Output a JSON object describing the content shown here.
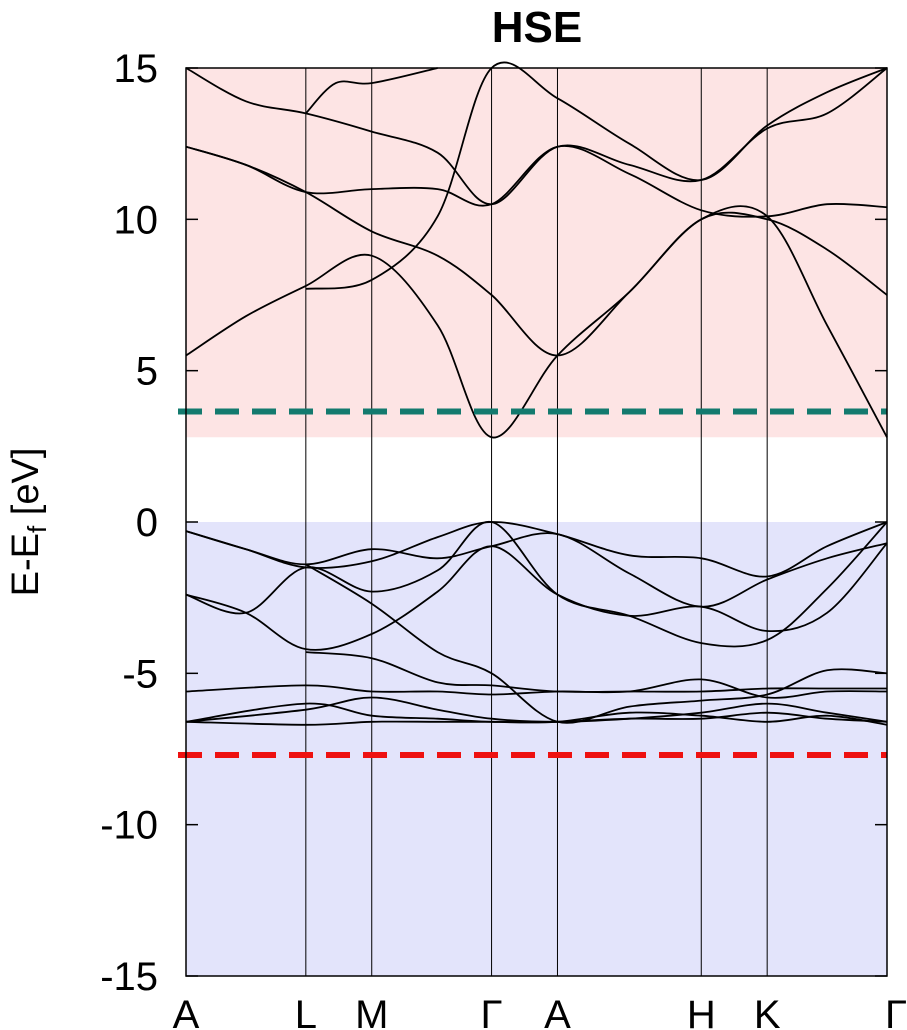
{
  "chart_data": {
    "type": "line",
    "title": "HSE",
    "ylabel": {
      "main": "E-E",
      "sub": "f",
      "unit": " [eV]"
    },
    "ylim": [
      -15,
      15
    ],
    "yticks": [
      15,
      10,
      5,
      0,
      -5,
      -10,
      -15
    ],
    "kpath": [
      {
        "label": "A",
        "x": 0.0
      },
      {
        "label": "L",
        "x": 1.0
      },
      {
        "label": "M",
        "x": 1.55
      },
      {
        "label": "Γ",
        "x": 2.55
      },
      {
        "label": "A",
        "x": 3.1
      },
      {
        "label": "H",
        "x": 4.3
      },
      {
        "label": "K",
        "x": 4.85
      },
      {
        "label": "Γ",
        "x": 5.85
      }
    ],
    "regions": [
      {
        "name": "conduction",
        "from": 2.8,
        "to": 15,
        "color": "#fde4e4"
      },
      {
        "name": "valence",
        "from": -15,
        "to": 0,
        "color": "#e3e4fb"
      }
    ],
    "reference_lines": [
      {
        "name": "cbm-reference",
        "y": 3.65,
        "color": "#137a6e"
      },
      {
        "name": "vbm-reference",
        "y": -7.7,
        "color": "#ee1111"
      }
    ],
    "bands": [
      [
        [
          0,
          5.5
        ],
        [
          0.5,
          6.8
        ],
        [
          1,
          7.8
        ],
        [
          1.55,
          8.8
        ],
        [
          2.1,
          6.5
        ],
        [
          2.55,
          2.8
        ],
        [
          3.1,
          5.5
        ],
        [
          3.7,
          7.6
        ],
        [
          4.3,
          10.0
        ],
        [
          4.85,
          10.1
        ],
        [
          5.35,
          6.5
        ],
        [
          5.85,
          2.8
        ]
      ],
      [
        [
          0,
          12.4
        ],
        [
          0.5,
          11.8
        ],
        [
          1,
          10.9
        ],
        [
          1.55,
          9.6
        ],
        [
          2.1,
          8.8
        ],
        [
          2.55,
          7.5
        ],
        [
          3.1,
          5.5
        ],
        [
          3.7,
          7.6
        ],
        [
          4.3,
          10.0
        ],
        [
          4.85,
          10.0
        ],
        [
          5.35,
          9.0
        ],
        [
          5.85,
          7.5
        ]
      ],
      [
        [
          0,
          12.4
        ],
        [
          0.5,
          11.8
        ],
        [
          1,
          10.9
        ],
        [
          1.55,
          11.0
        ],
        [
          2.1,
          11.0
        ],
        [
          2.55,
          10.5
        ],
        [
          3.1,
          12.4
        ],
        [
          3.7,
          11.5
        ],
        [
          4.3,
          10.3
        ],
        [
          4.85,
          10.1
        ],
        [
          5.35,
          10.5
        ],
        [
          5.85,
          10.4
        ]
      ],
      [
        [
          0,
          15.0
        ],
        [
          0.5,
          13.9
        ],
        [
          1,
          13.5
        ],
        [
          1.55,
          12.9
        ],
        [
          2.1,
          12.2
        ],
        [
          2.55,
          10.5
        ],
        [
          3.1,
          12.4
        ],
        [
          3.7,
          11.8
        ],
        [
          4.3,
          11.3
        ],
        [
          4.85,
          13.0
        ],
        [
          5.35,
          13.5
        ],
        [
          5.85,
          15.0
        ]
      ],
      [
        [
          1,
          7.7
        ],
        [
          1.55,
          8.0
        ],
        [
          2.1,
          10.1
        ],
        [
          2.55,
          15.0
        ],
        [
          3.1,
          14.0
        ],
        [
          3.7,
          12.5
        ],
        [
          4.3,
          11.3
        ],
        [
          4.85,
          13.1
        ],
        [
          5.35,
          14.2
        ],
        [
          5.85,
          15.0
        ]
      ],
      [
        [
          1,
          13.5
        ],
        [
          1.25,
          14.5
        ],
        [
          1.55,
          14.5
        ],
        [
          2.1,
          15.0
        ]
      ],
      [
        [
          0,
          -0.3
        ],
        [
          0.5,
          -0.9
        ],
        [
          1,
          -1.5
        ],
        [
          1.55,
          -1.3
        ],
        [
          2.1,
          -0.5
        ],
        [
          2.55,
          0.0
        ],
        [
          3.1,
          -0.4
        ],
        [
          3.7,
          -1.1
        ],
        [
          4.3,
          -1.2
        ],
        [
          4.85,
          -1.8
        ],
        [
          5.35,
          -0.8
        ],
        [
          5.85,
          0.0
        ]
      ],
      [
        [
          0,
          -0.3
        ],
        [
          0.5,
          -0.9
        ],
        [
          1,
          -1.4
        ],
        [
          1.55,
          -0.9
        ],
        [
          2.1,
          -1.2
        ],
        [
          2.55,
          -0.8
        ],
        [
          3.1,
          -0.4
        ],
        [
          3.7,
          -1.7
        ],
        [
          4.3,
          -2.8
        ],
        [
          4.85,
          -1.9
        ],
        [
          5.35,
          -1.2
        ],
        [
          5.85,
          -0.7
        ]
      ],
      [
        [
          0,
          -2.4
        ],
        [
          0.5,
          -3.0
        ],
        [
          1,
          -1.5
        ],
        [
          1.55,
          -2.3
        ],
        [
          2.1,
          -1.6
        ],
        [
          2.55,
          0.0
        ],
        [
          3.1,
          -2.4
        ],
        [
          3.7,
          -3.1
        ],
        [
          4.3,
          -4.0
        ],
        [
          4.85,
          -3.9
        ],
        [
          5.35,
          -2.2
        ],
        [
          5.85,
          0.0
        ]
      ],
      [
        [
          0,
          -2.4
        ],
        [
          0.5,
          -3.0
        ],
        [
          1,
          -4.2
        ],
        [
          1.55,
          -3.7
        ],
        [
          2.1,
          -2.3
        ],
        [
          2.55,
          -0.8
        ],
        [
          3.1,
          -2.4
        ],
        [
          3.7,
          -3.1
        ],
        [
          4.3,
          -2.8
        ],
        [
          4.85,
          -3.6
        ],
        [
          5.35,
          -3.0
        ],
        [
          5.85,
          -0.7
        ]
      ],
      [
        [
          1,
          -1.4
        ],
        [
          1.55,
          -2.7
        ],
        [
          2.1,
          -4.3
        ],
        [
          2.55,
          -5.0
        ],
        [
          3.1,
          -6.6
        ],
        [
          3.7,
          -6.1
        ],
        [
          4.3,
          -5.9
        ],
        [
          4.85,
          -5.7
        ],
        [
          5.35,
          -4.9
        ],
        [
          5.85,
          -5.0
        ]
      ],
      [
        [
          1,
          -4.3
        ],
        [
          1.55,
          -4.5
        ],
        [
          2.1,
          -5.3
        ],
        [
          2.55,
          -5.4
        ],
        [
          3.1,
          -5.6
        ],
        [
          3.7,
          -5.6
        ],
        [
          4.3,
          -5.6
        ],
        [
          4.85,
          -5.5
        ],
        [
          5.35,
          -5.5
        ],
        [
          5.85,
          -5.5
        ]
      ],
      [
        [
          0,
          -5.6
        ],
        [
          1,
          -5.4
        ],
        [
          1.55,
          -5.6
        ],
        [
          2.1,
          -5.6
        ],
        [
          2.55,
          -5.7
        ],
        [
          3.1,
          -5.6
        ],
        [
          3.7,
          -5.6
        ],
        [
          4.3,
          -5.2
        ],
        [
          4.85,
          -5.8
        ],
        [
          5.35,
          -5.6
        ],
        [
          5.85,
          -5.6
        ]
      ],
      [
        [
          0,
          -6.6
        ],
        [
          1,
          -6.2
        ],
        [
          1.55,
          -5.8
        ],
        [
          2.1,
          -6.2
        ],
        [
          2.55,
          -6.5
        ],
        [
          3.1,
          -6.6
        ],
        [
          3.7,
          -6.5
        ],
        [
          4.3,
          -6.3
        ],
        [
          4.85,
          -6.0
        ],
        [
          5.35,
          -6.3
        ],
        [
          5.85,
          -6.6
        ]
      ],
      [
        [
          0,
          -6.6
        ],
        [
          1,
          -6.0
        ],
        [
          1.55,
          -6.4
        ],
        [
          2.1,
          -6.5
        ],
        [
          2.55,
          -6.6
        ],
        [
          3.1,
          -6.6
        ],
        [
          3.7,
          -6.3
        ],
        [
          4.3,
          -6.4
        ],
        [
          4.85,
          -6.6
        ],
        [
          5.35,
          -6.4
        ],
        [
          5.85,
          -6.7
        ]
      ],
      [
        [
          0,
          -6.6
        ],
        [
          1,
          -6.7
        ],
        [
          1.55,
          -6.6
        ],
        [
          2.1,
          -6.6
        ],
        [
          2.55,
          -6.6
        ],
        [
          3.1,
          -6.6
        ],
        [
          3.7,
          -6.5
        ],
        [
          4.3,
          -6.5
        ],
        [
          4.85,
          -6.3
        ],
        [
          5.35,
          -6.5
        ],
        [
          5.85,
          -6.6
        ]
      ]
    ]
  }
}
